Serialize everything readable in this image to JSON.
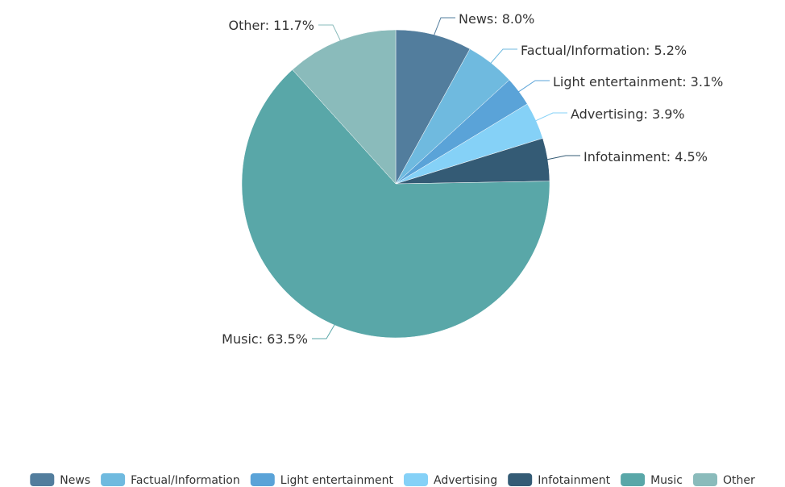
{
  "chart_data": {
    "type": "pie",
    "legend_position": "bottom",
    "slices": [
      {
        "name": "News",
        "value": 8.0,
        "label": "News: 8.0%",
        "color": "#527D9D"
      },
      {
        "name": "Factual/Information",
        "value": 5.2,
        "label": "Factual/Information: 5.2%",
        "color": "#6FBADF"
      },
      {
        "name": "Light entertainment",
        "value": 3.1,
        "label": "Light entertainment: 3.1%",
        "color": "#5AA3D8"
      },
      {
        "name": "Advertising",
        "value": 3.9,
        "label": "Advertising: 3.9%",
        "color": "#85D1F7"
      },
      {
        "name": "Infotainment",
        "value": 4.5,
        "label": "Infotainment: 4.5%",
        "color": "#345B75"
      },
      {
        "name": "Music",
        "value": 63.5,
        "label": "Music: 63.5%",
        "color": "#59A7A8"
      },
      {
        "name": "Other",
        "value": 11.7,
        "label": "Other: 11.7%",
        "color": "#8ABBBB"
      }
    ]
  }
}
